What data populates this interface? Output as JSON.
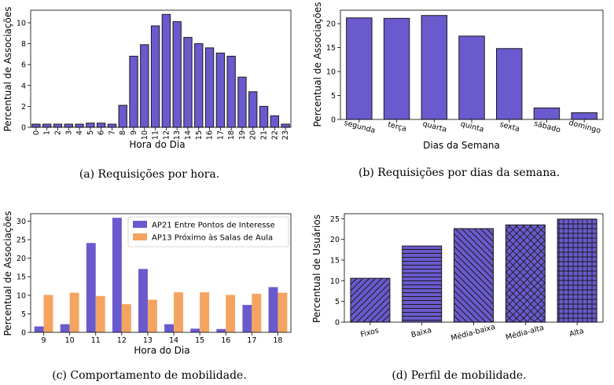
{
  "colors": {
    "primary": "#6a5acd",
    "secondary": "#f4a460",
    "edge": "#1a1a1a"
  },
  "chart_data": [
    {
      "type": "bar",
      "caption": "(a) Requisições por hora.",
      "xlabel": "Hora do Dia",
      "ylabel": "Percentual de Associações",
      "ylim": [
        0,
        11.2
      ],
      "yticks": [
        0,
        2,
        4,
        6,
        8,
        10
      ],
      "categories": [
        "0",
        "1",
        "2",
        "3",
        "4",
        "5",
        "6",
        "7",
        "8",
        "9",
        "10",
        "11",
        "12",
        "13",
        "14",
        "15",
        "16",
        "17",
        "18",
        "19",
        "20",
        "21",
        "22",
        "23"
      ],
      "values": [
        0.3,
        0.3,
        0.3,
        0.3,
        0.3,
        0.4,
        0.4,
        0.3,
        2.1,
        6.8,
        7.9,
        9.7,
        10.8,
        10.1,
        8.6,
        8.0,
        7.6,
        7.1,
        6.8,
        4.8,
        3.4,
        2.0,
        1.1,
        0.3
      ]
    },
    {
      "type": "bar",
      "caption": "(b) Requisições por dias da semana.",
      "xlabel": "Dias da Semana",
      "ylabel": "Percentual de Associações",
      "ylim": [
        0,
        22.8
      ],
      "yticks": [
        0,
        5,
        10,
        15,
        20
      ],
      "categories": [
        "segunda",
        "terça",
        "quarta",
        "quinta",
        "sexta",
        "sábado",
        "domingo"
      ],
      "values": [
        21.2,
        21.1,
        21.7,
        17.4,
        14.8,
        2.4,
        1.4
      ]
    },
    {
      "type": "bar",
      "caption": "(c) Comportamento de mobilidade.",
      "xlabel": "Hora do Dia",
      "ylabel": "Percentual de Associações",
      "ylim": [
        0,
        32
      ],
      "yticks": [
        0,
        5,
        10,
        15,
        20,
        25,
        30
      ],
      "legend_position": "top-right",
      "categories": [
        "9",
        "10",
        "11",
        "12",
        "13",
        "14",
        "15",
        "16",
        "17",
        "18"
      ],
      "series": [
        {
          "name": "AP21 Entre Pontos de Interesse",
          "values": [
            1.6,
            2.2,
            24.1,
            30.9,
            17.1,
            2.2,
            1.0,
            0.9,
            7.4,
            12.2
          ]
        },
        {
          "name": "AP13 Próximo às Salas de Aula",
          "values": [
            10.1,
            10.7,
            9.8,
            7.6,
            8.8,
            10.8,
            10.8,
            10.1,
            10.4,
            10.7
          ]
        }
      ]
    },
    {
      "type": "bar",
      "caption": "(d) Perfil de mobilidade.",
      "xlabel": "",
      "ylabel": "Percentual de Usuários",
      "ylim": [
        0,
        26.2
      ],
      "yticks": [
        0,
        5,
        10,
        15,
        20,
        25
      ],
      "categories": [
        "Fixos",
        "Baixa",
        "Média-baixa",
        "Média-alta",
        "Alta"
      ],
      "values": [
        10.6,
        18.4,
        22.6,
        23.5,
        24.9
      ],
      "hatches": [
        "diag-up",
        "horizontal",
        "diag-down",
        "cross-diag",
        "grid"
      ]
    }
  ]
}
